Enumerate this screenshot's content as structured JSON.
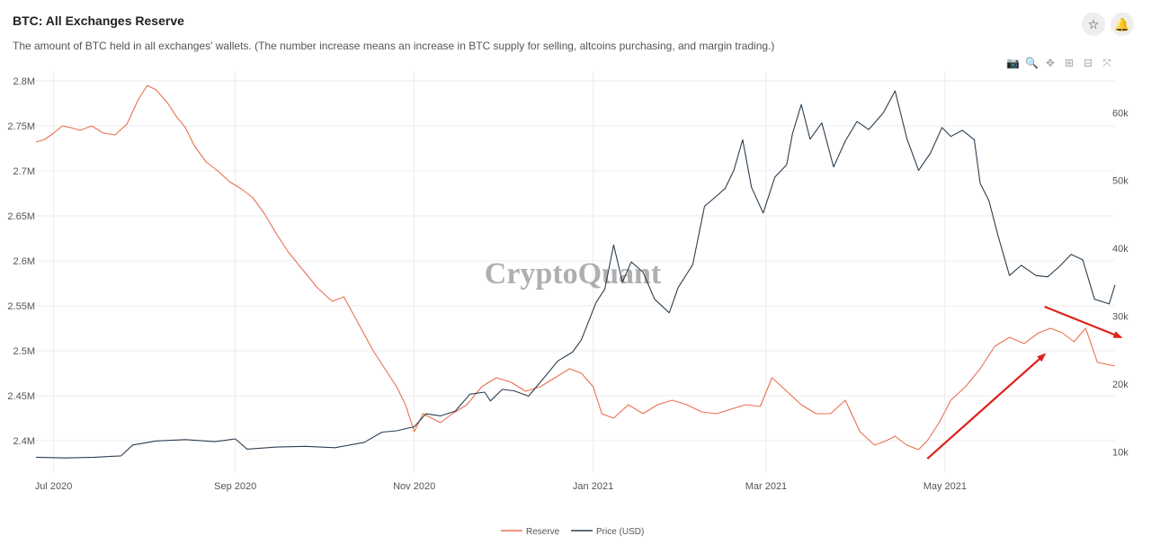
{
  "header": {
    "title": "BTC: All Exchanges Reserve",
    "subtitle": "The amount of BTC held in all exchanges' wallets. (The number increase means an increase in BTC supply for selling, altcoins purchasing, and margin trading.)",
    "favorite_icon": "star-icon",
    "alert_icon": "bell-icon"
  },
  "toolbar": {
    "items": [
      "camera-icon",
      "zoom-icon",
      "pan-icon",
      "zoom-in-icon",
      "zoom-out-icon",
      "autoscale-icon"
    ]
  },
  "watermark": "CryptoQuant",
  "colors": {
    "reserve": "#e8704f",
    "price": "#2c3e50",
    "arrow": "#e0201b",
    "grid": "#ececec"
  },
  "chart_data": {
    "type": "line",
    "title": "BTC: All Exchanges Reserve",
    "x_ticks": [
      "Jul 2020",
      "Sep 2020",
      "Nov 2020",
      "Jan 2021",
      "Mar 2021",
      "May 2021"
    ],
    "x_tick_dates": [
      "2020-07-01",
      "2020-09-01",
      "2020-11-01",
      "2021-01-01",
      "2021-03-01",
      "2021-05-01"
    ],
    "x_range": [
      "2020-06-25",
      "2021-06-28"
    ],
    "y_left": {
      "ticks": [
        "2.4M",
        "2.45M",
        "2.5M",
        "2.55M",
        "2.6M",
        "2.65M",
        "2.7M",
        "2.75M",
        "2.8M"
      ],
      "tick_values": [
        2400000,
        2450000,
        2500000,
        2550000,
        2600000,
        2650000,
        2700000,
        2750000,
        2800000
      ],
      "range": [
        2365000,
        2810000
      ]
    },
    "y_right": {
      "ticks": [
        "10k",
        "20k",
        "30k",
        "40k",
        "50k",
        "60k"
      ],
      "tick_values": [
        10000,
        20000,
        30000,
        40000,
        50000,
        60000
      ],
      "range": [
        7000,
        66000
      ]
    },
    "grid": true,
    "legend_position": "bottom-center",
    "series": [
      {
        "name": "Reserve",
        "axis": "left",
        "x": [
          "2020-06-25",
          "2020-06-28",
          "2020-07-01",
          "2020-07-04",
          "2020-07-07",
          "2020-07-10",
          "2020-07-14",
          "2020-07-18",
          "2020-07-22",
          "2020-07-26",
          "2020-07-30",
          "2020-08-02",
          "2020-08-05",
          "2020-08-09",
          "2020-08-12",
          "2020-08-15",
          "2020-08-18",
          "2020-08-22",
          "2020-08-26",
          "2020-08-30",
          "2020-09-03",
          "2020-09-07",
          "2020-09-11",
          "2020-09-15",
          "2020-09-19",
          "2020-09-24",
          "2020-09-29",
          "2020-10-04",
          "2020-10-08",
          "2020-10-13",
          "2020-10-18",
          "2020-10-22",
          "2020-10-26",
          "2020-10-29",
          "2020-11-01",
          "2020-11-04",
          "2020-11-07",
          "2020-11-10",
          "2020-11-14",
          "2020-11-19",
          "2020-11-24",
          "2020-11-29",
          "2020-12-04",
          "2020-12-09",
          "2020-12-14",
          "2020-12-19",
          "2020-12-24",
          "2020-12-28",
          "2021-01-01",
          "2021-01-04",
          "2021-01-08",
          "2021-01-13",
          "2021-01-18",
          "2021-01-23",
          "2021-01-28",
          "2021-02-02",
          "2021-02-07",
          "2021-02-12",
          "2021-02-17",
          "2021-02-22",
          "2021-02-27",
          "2021-03-03",
          "2021-03-08",
          "2021-03-13",
          "2021-03-18",
          "2021-03-23",
          "2021-03-28",
          "2021-04-02",
          "2021-04-07",
          "2021-04-11",
          "2021-04-14",
          "2021-04-18",
          "2021-04-22",
          "2021-04-25",
          "2021-04-29",
          "2021-05-03",
          "2021-05-08",
          "2021-05-13",
          "2021-05-18",
          "2021-05-23",
          "2021-05-28",
          "2021-06-02",
          "2021-06-06",
          "2021-06-10",
          "2021-06-14",
          "2021-06-18",
          "2021-06-22",
          "2021-06-28"
        ],
        "y": [
          2732000,
          2735000,
          2742000,
          2750000,
          2748000,
          2745000,
          2750000,
          2742000,
          2740000,
          2752000,
          2780000,
          2795000,
          2790000,
          2775000,
          2760000,
          2748000,
          2728000,
          2710000,
          2700000,
          2688000,
          2680000,
          2670000,
          2652000,
          2630000,
          2610000,
          2590000,
          2570000,
          2555000,
          2560000,
          2530000,
          2500000,
          2480000,
          2460000,
          2440000,
          2410000,
          2430000,
          2425000,
          2420000,
          2430000,
          2440000,
          2460000,
          2470000,
          2465000,
          2455000,
          2460000,
          2470000,
          2480000,
          2475000,
          2460000,
          2430000,
          2425000,
          2440000,
          2430000,
          2440000,
          2445000,
          2440000,
          2432000,
          2430000,
          2435000,
          2440000,
          2438000,
          2470000,
          2455000,
          2440000,
          2430000,
          2430000,
          2445000,
          2410000,
          2395000,
          2400000,
          2405000,
          2395000,
          2390000,
          2400000,
          2420000,
          2445000,
          2460000,
          2480000,
          2505000,
          2515000,
          2508000,
          2520000,
          2525000,
          2520000,
          2510000,
          2525000,
          2487000,
          2483000
        ]
      },
      {
        "name": "Price (USD)",
        "axis": "right",
        "x": [
          "2020-06-25",
          "2020-07-05",
          "2020-07-15",
          "2020-07-24",
          "2020-07-28",
          "2020-08-05",
          "2020-08-15",
          "2020-08-25",
          "2020-09-01",
          "2020-09-05",
          "2020-09-15",
          "2020-09-25",
          "2020-10-05",
          "2020-10-15",
          "2020-10-21",
          "2020-10-26",
          "2020-11-01",
          "2020-11-05",
          "2020-11-10",
          "2020-11-15",
          "2020-11-20",
          "2020-11-25",
          "2020-11-27",
          "2020-12-01",
          "2020-12-05",
          "2020-12-10",
          "2020-12-16",
          "2020-12-20",
          "2020-12-25",
          "2020-12-28",
          "2021-01-02",
          "2021-01-05",
          "2021-01-08",
          "2021-01-11",
          "2021-01-14",
          "2021-01-18",
          "2021-01-22",
          "2021-01-27",
          "2021-01-30",
          "2021-02-04",
          "2021-02-08",
          "2021-02-11",
          "2021-02-15",
          "2021-02-18",
          "2021-02-21",
          "2021-02-24",
          "2021-02-28",
          "2021-03-04",
          "2021-03-08",
          "2021-03-10",
          "2021-03-13",
          "2021-03-16",
          "2021-03-20",
          "2021-03-24",
          "2021-03-28",
          "2021-04-01",
          "2021-04-05",
          "2021-04-10",
          "2021-04-14",
          "2021-04-18",
          "2021-04-22",
          "2021-04-26",
          "2021-04-30",
          "2021-05-03",
          "2021-05-07",
          "2021-05-11",
          "2021-05-13",
          "2021-05-16",
          "2021-05-19",
          "2021-05-23",
          "2021-05-27",
          "2021-06-01",
          "2021-06-05",
          "2021-06-09",
          "2021-06-13",
          "2021-06-17",
          "2021-06-21",
          "2021-06-26",
          "2021-06-28"
        ],
        "y": [
          9200,
          9100,
          9200,
          9400,
          11000,
          11600,
          11800,
          11500,
          11900,
          10400,
          10700,
          10800,
          10600,
          11400,
          12900,
          13100,
          13700,
          15600,
          15300,
          16000,
          18500,
          18800,
          17500,
          19200,
          19000,
          18200,
          21300,
          23400,
          24700,
          26500,
          32000,
          34000,
          40500,
          35000,
          38000,
          36500,
          32500,
          30500,
          34200,
          37600,
          46200,
          47300,
          48800,
          51500,
          56000,
          49000,
          45200,
          50500,
          52300,
          56900,
          61200,
          56100,
          58500,
          52000,
          55800,
          58700,
          57500,
          60000,
          63200,
          56200,
          51500,
          54000,
          57800,
          56500,
          57400,
          56000,
          49600,
          47000,
          42000,
          36000,
          37500,
          36000,
          35800,
          37300,
          39100,
          38300,
          32500,
          31800,
          34600
        ]
      }
    ],
    "annotations": [
      {
        "type": "arrow",
        "from": [
          "2021-04-25",
          2380000
        ],
        "to": [
          "2021-06-04",
          2496000
        ]
      },
      {
        "type": "arrow",
        "from": [
          "2021-06-04",
          2549000
        ],
        "to": [
          "2021-06-30",
          2515000
        ]
      }
    ]
  },
  "legend": {
    "items": [
      "Reserve",
      "Price (USD)"
    ]
  }
}
